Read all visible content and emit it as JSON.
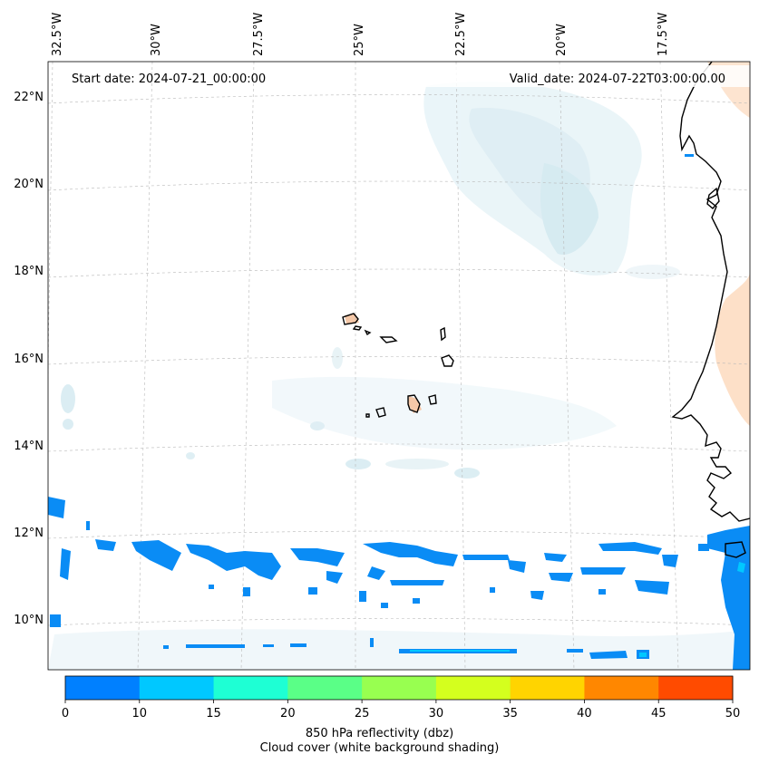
{
  "header": {
    "start_label": "Start date: 2024-07-21_00:00:00",
    "valid_label": "Valid_date: 2024-07-22T03:00:00.00"
  },
  "map": {
    "projection": "lambert-conformal",
    "lon_ticks": [
      "32.5°W",
      "30°W",
      "27.5°W",
      "25°W",
      "22.5°W",
      "20°W",
      "17.5°W"
    ],
    "lat_ticks": [
      "22°N",
      "20°N",
      "18°N",
      "16°N",
      "14°N",
      "12°N",
      "10°N"
    ],
    "gridlines": true,
    "coastline_color": "#000000",
    "land_features": [
      "cape-verde-islands",
      "west-african-coast"
    ]
  },
  "colorbar": {
    "ticks": [
      "0",
      "10",
      "15",
      "20",
      "25",
      "30",
      "35",
      "40",
      "45",
      "50"
    ],
    "colors": [
      "#0080ff",
      "#00c8ff",
      "#1effd4",
      "#5aff87",
      "#98ff50",
      "#d4ff1e",
      "#ffd400",
      "#ff8700",
      "#ff4b00"
    ],
    "label_line1": "850 hPa reflectivity (dbz)",
    "label_line2": "Cloud cover (white background shading)"
  },
  "chart_data": {
    "type": "heatmap",
    "variable": "850 hPa reflectivity (dbz)",
    "overlay": "Cloud cover (white background shading)",
    "levels": [
      0,
      10,
      15,
      20,
      25,
      30,
      35,
      40,
      45,
      50
    ],
    "lat_range": [
      "9°N",
      "22°N"
    ],
    "lon_range": [
      "32.5°W",
      "17.5°W"
    ]
  }
}
